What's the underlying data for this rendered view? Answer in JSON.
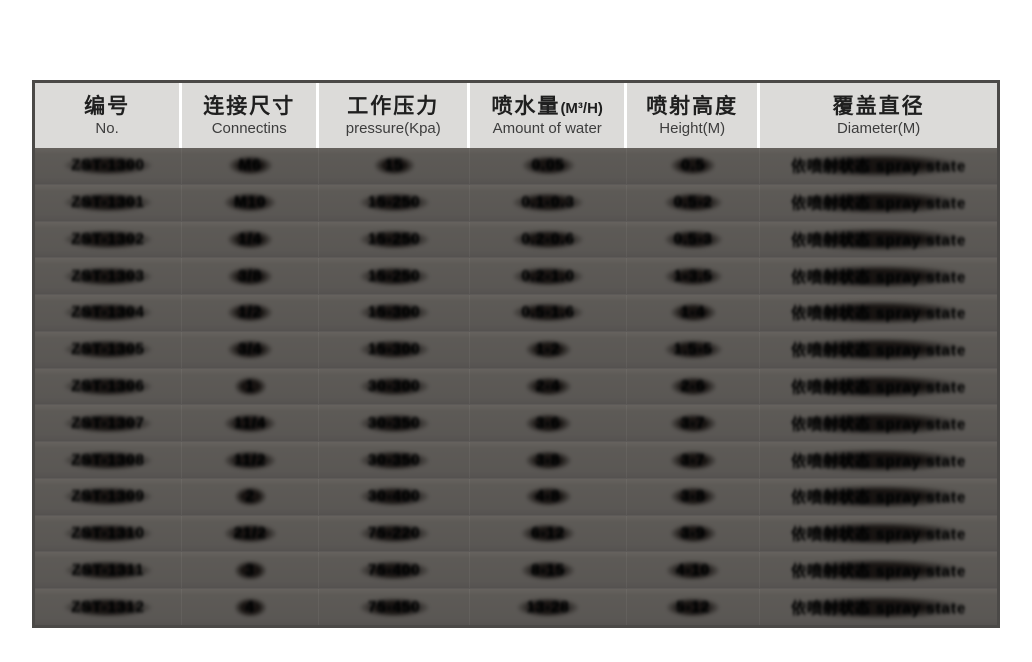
{
  "table": {
    "style": {
      "header_bg": "#dcdbd9",
      "header_text": "#1f1f1f",
      "header_divider": "#ffffff",
      "body_bg": "#5c5955",
      "body_text": "#14110e",
      "outer_border": "#4b4947",
      "body_text_rendering": "garbled-illegible-blur"
    },
    "columns": [
      {
        "id": "no",
        "zh": "编号",
        "zh_suffix": "",
        "en": "No."
      },
      {
        "id": "connection",
        "zh": "连接尺寸",
        "zh_suffix": "",
        "en": "Connectins"
      },
      {
        "id": "pressure",
        "zh": "工作压力",
        "zh_suffix": "",
        "en": "pressure(Kpa)"
      },
      {
        "id": "water",
        "zh": "喷水量",
        "zh_suffix": "(M³/H)",
        "en": "Amount of water"
      },
      {
        "id": "height",
        "zh": "喷射高度",
        "zh_suffix": "",
        "en": "Height(M)"
      },
      {
        "id": "diameter",
        "zh": "覆盖直径",
        "zh_suffix": "",
        "en": "Diameter(M)"
      }
    ],
    "rows": [
      {
        "no": "ZST-1300",
        "connection": "M6",
        "pressure": "15",
        "water": "0.05",
        "height": "0.5",
        "diameter": "依喷射状态 spray state"
      },
      {
        "no": "ZST-1301",
        "connection": "M10",
        "pressure": "15-250",
        "water": "0.1-0.3",
        "height": "0.5-2",
        "diameter": "依喷射状态 spray state"
      },
      {
        "no": "ZST-1302",
        "connection": "1/4",
        "pressure": "15-250",
        "water": "0.2-0.6",
        "height": "0.5-3",
        "diameter": "依喷射状态 spray state"
      },
      {
        "no": "ZST-1303",
        "connection": "3/8",
        "pressure": "15-250",
        "water": "0.2-1.0",
        "height": "1-3.5",
        "diameter": "依喷射状态 spray state"
      },
      {
        "no": "ZST-1304",
        "connection": "1/2",
        "pressure": "15-300",
        "water": "0.5-1.6",
        "height": "1-4",
        "diameter": "依喷射状态 spray state"
      },
      {
        "no": "ZST-1305",
        "connection": "3/4",
        "pressure": "15-300",
        "water": "1-2",
        "height": "1.5-5",
        "diameter": "依喷射状态 spray state"
      },
      {
        "no": "ZST-1306",
        "connection": "1",
        "pressure": "30-300",
        "water": "2-4",
        "height": "2-6",
        "diameter": "依喷射状态 spray state"
      },
      {
        "no": "ZST-1307",
        "connection": "11/4",
        "pressure": "30-350",
        "water": "3-6",
        "height": "3-7",
        "diameter": "依喷射状态 spray state"
      },
      {
        "no": "ZST-1308",
        "connection": "11/2",
        "pressure": "30-350",
        "water": "3-8",
        "height": "3-7",
        "diameter": "依喷射状态 spray state"
      },
      {
        "no": "ZST-1309",
        "connection": "2",
        "pressure": "30-400",
        "water": "4-8",
        "height": "3-8",
        "diameter": "依喷射状态 spray state"
      },
      {
        "no": "ZST-1310",
        "connection": "21/2",
        "pressure": "75-220",
        "water": "6-12",
        "height": "3-9",
        "diameter": "依喷射状态 spray state"
      },
      {
        "no": "ZST-1311",
        "connection": "3",
        "pressure": "75-400",
        "water": "8-15",
        "height": "4-10",
        "diameter": "依喷射状态 spray state"
      },
      {
        "no": "ZST-1312",
        "connection": "4",
        "pressure": "75-450",
        "water": "13-28",
        "height": "5-12",
        "diameter": "依喷射状态 spray state"
      }
    ]
  }
}
